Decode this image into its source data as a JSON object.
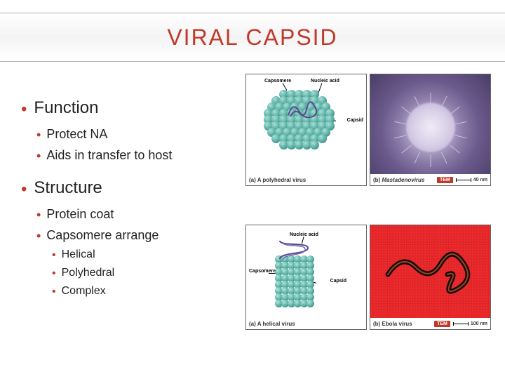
{
  "title": "VIRAL CAPSID",
  "colors": {
    "accent": "#c0392b",
    "text": "#222222",
    "title_border": "#b0b0b0",
    "sphere_light": "#a8e0d8",
    "sphere_mid": "#4fa89c",
    "sphere_dark": "#2a6b62",
    "em_bg_outer": "#4a3d68",
    "em_bg_inner": "#d8d4e8",
    "ebola_bg": "#e8252b",
    "nucleic": "#5a4a8c"
  },
  "outline": {
    "h1_function": "Function",
    "h1_structure": "Structure",
    "fn_items": [
      "Protect NA",
      "Aids in transfer to host"
    ],
    "st_items": [
      "Protein coat",
      "Capsomere arrange"
    ],
    "st_sub": [
      "Helical",
      "Polyhedral",
      "Complex"
    ]
  },
  "fig_top": {
    "a": {
      "caption": "(a) A polyhedral virus",
      "labels": {
        "capsomere": "Capsomere",
        "nucleic": "Nucleic acid",
        "capsid": "Capsid"
      }
    },
    "b": {
      "caption": "(b)",
      "name_italic": "Mastadenovirus",
      "badge": "TEM",
      "scale": "40 nm"
    }
  },
  "fig_bottom": {
    "a": {
      "caption": "(a) A helical virus",
      "labels": {
        "capsomere": "Capsomere",
        "nucleic": "Nucleic acid",
        "capsid": "Capsid"
      }
    },
    "b": {
      "caption": "(b) Ebola virus",
      "badge": "TEM",
      "scale": "100 nm"
    }
  }
}
